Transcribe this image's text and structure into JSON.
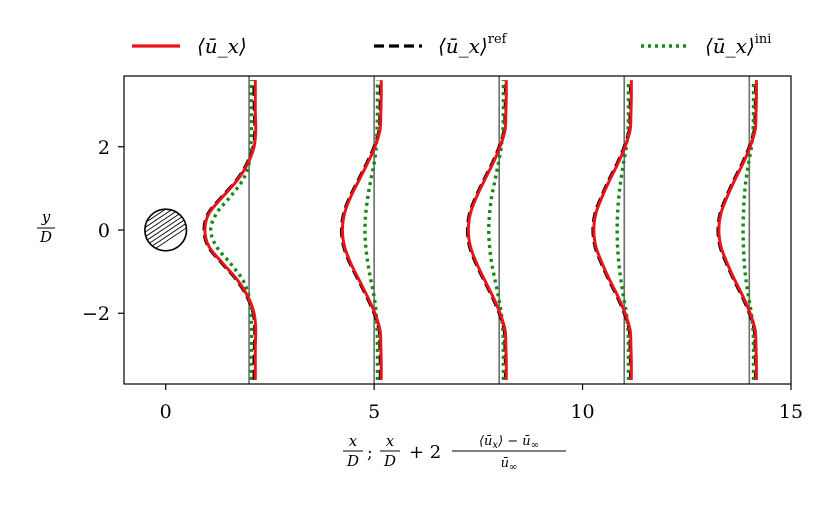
{
  "chart_data": {
    "type": "line",
    "title": "",
    "xlabel": "x/D;  x/D + 2 (⟨ū_x⟩ − ū_∞)/ū_∞",
    "ylabel": "y/D",
    "xlim": [
      -1,
      15
    ],
    "ylim": [
      -3.7,
      3.7
    ],
    "xticks": [
      0,
      5,
      10,
      15
    ],
    "yticks": [
      -2,
      0,
      2
    ],
    "xtick_labels": [
      "0",
      "5",
      "10",
      "15"
    ],
    "ytick_labels": [
      "−2",
      "0",
      "2"
    ],
    "grid": false,
    "legend_position": "top",
    "legend": [
      {
        "name": "⟨ū_x⟩",
        "sup": "",
        "color": "#e8141c",
        "style": "solid"
      },
      {
        "name": "⟨ū_x⟩",
        "sup": "ref",
        "color": "#000000",
        "style": "dashed"
      },
      {
        "name": "⟨ū_x⟩",
        "sup": "ini",
        "color": "#138a13",
        "style": "dotted"
      }
    ],
    "cylinder": {
      "center": [
        0,
        0
      ],
      "diameter": 1
    },
    "stations": [
      2,
      5,
      8,
      11,
      14
    ],
    "y": [
      -3.6,
      -3.2,
      -2.8,
      -2.4,
      -2.0,
      -1.6,
      -1.2,
      -0.8,
      -0.4,
      0.0,
      0.4,
      0.8,
      1.2,
      1.6,
      2.0,
      2.4,
      2.8,
      3.2,
      3.6
    ],
    "series": [
      {
        "key": "ref",
        "name": "⟨ū_x⟩ ref",
        "color": "#000000",
        "style": "dashed",
        "width": 3.2,
        "curves": [
          [
            2.12,
            2.12,
            2.13,
            2.14,
            2.1,
            1.95,
            1.7,
            1.35,
            1.02,
            0.92,
            1.02,
            1.35,
            1.7,
            1.95,
            2.1,
            2.14,
            2.13,
            2.12,
            2.12
          ],
          [
            5.15,
            5.15,
            5.14,
            5.12,
            5.0,
            4.82,
            4.62,
            4.42,
            4.27,
            4.22,
            4.27,
            4.42,
            4.62,
            4.82,
            5.0,
            5.12,
            5.14,
            5.15,
            5.15
          ],
          [
            8.15,
            8.15,
            8.14,
            8.12,
            8.0,
            7.83,
            7.63,
            7.44,
            7.29,
            7.24,
            7.29,
            7.44,
            7.63,
            7.83,
            8.0,
            8.12,
            8.14,
            8.15,
            8.15
          ],
          [
            11.15,
            11.15,
            11.14,
            11.12,
            11.0,
            10.83,
            10.63,
            10.45,
            10.3,
            10.25,
            10.3,
            10.45,
            10.63,
            10.83,
            11.0,
            11.12,
            11.14,
            11.15,
            11.15
          ],
          [
            14.15,
            14.15,
            14.14,
            14.12,
            14.0,
            13.83,
            13.63,
            13.45,
            13.3,
            13.25,
            13.3,
            13.45,
            13.63,
            13.83,
            14.0,
            14.12,
            14.14,
            14.15,
            14.15
          ]
        ]
      },
      {
        "key": "ini",
        "name": "⟨ū_x⟩ ini",
        "color": "#138a13",
        "style": "dotted",
        "width": 3.4,
        "curves": [
          [
            2.05,
            2.05,
            2.06,
            2.06,
            2.04,
            2.0,
            1.85,
            1.55,
            1.22,
            1.08,
            1.22,
            1.55,
            1.85,
            2.0,
            2.04,
            2.06,
            2.06,
            2.05,
            2.05
          ],
          [
            5.08,
            5.08,
            5.08,
            5.07,
            5.05,
            5.0,
            4.92,
            4.85,
            4.8,
            4.78,
            4.8,
            4.85,
            4.92,
            5.0,
            5.05,
            5.07,
            5.08,
            5.08,
            5.08
          ],
          [
            8.1,
            8.1,
            8.1,
            8.09,
            8.05,
            7.98,
            7.9,
            7.82,
            7.77,
            7.75,
            7.77,
            7.82,
            7.9,
            7.98,
            8.05,
            8.09,
            8.1,
            8.1,
            8.1
          ],
          [
            11.1,
            11.1,
            11.1,
            11.09,
            11.05,
            10.98,
            10.92,
            10.87,
            10.84,
            10.83,
            10.84,
            10.87,
            10.92,
            10.98,
            11.05,
            11.09,
            11.1,
            11.1,
            11.1
          ],
          [
            14.1,
            14.1,
            14.1,
            14.09,
            14.05,
            13.98,
            13.92,
            13.88,
            13.86,
            13.85,
            13.86,
            13.88,
            13.92,
            13.98,
            14.05,
            14.09,
            14.1,
            14.1,
            14.1
          ]
        ]
      },
      {
        "key": "main",
        "name": "⟨ū_x⟩",
        "color": "#e8141c",
        "style": "solid",
        "width": 3.0,
        "curves": [
          [
            2.15,
            2.15,
            2.15,
            2.16,
            2.12,
            1.97,
            1.72,
            1.37,
            1.04,
            0.94,
            1.04,
            1.37,
            1.72,
            1.97,
            2.12,
            2.16,
            2.15,
            2.15,
            2.15
          ],
          [
            5.17,
            5.17,
            5.16,
            5.14,
            5.02,
            4.84,
            4.64,
            4.44,
            4.29,
            4.24,
            4.29,
            4.44,
            4.64,
            4.84,
            5.02,
            5.14,
            5.16,
            5.17,
            5.17
          ],
          [
            8.17,
            8.17,
            8.16,
            8.14,
            8.02,
            7.85,
            7.65,
            7.46,
            7.31,
            7.26,
            7.31,
            7.46,
            7.65,
            7.85,
            8.02,
            8.14,
            8.16,
            8.17,
            8.17
          ],
          [
            11.17,
            11.17,
            11.16,
            11.14,
            11.02,
            10.85,
            10.65,
            10.47,
            10.32,
            10.27,
            10.32,
            10.47,
            10.65,
            10.85,
            11.02,
            11.14,
            11.16,
            11.17,
            11.17
          ],
          [
            14.17,
            14.17,
            14.16,
            14.14,
            14.02,
            13.85,
            13.65,
            13.47,
            13.32,
            13.27,
            13.32,
            13.47,
            13.65,
            13.85,
            14.02,
            14.14,
            14.16,
            14.17,
            14.17
          ]
        ]
      }
    ]
  }
}
